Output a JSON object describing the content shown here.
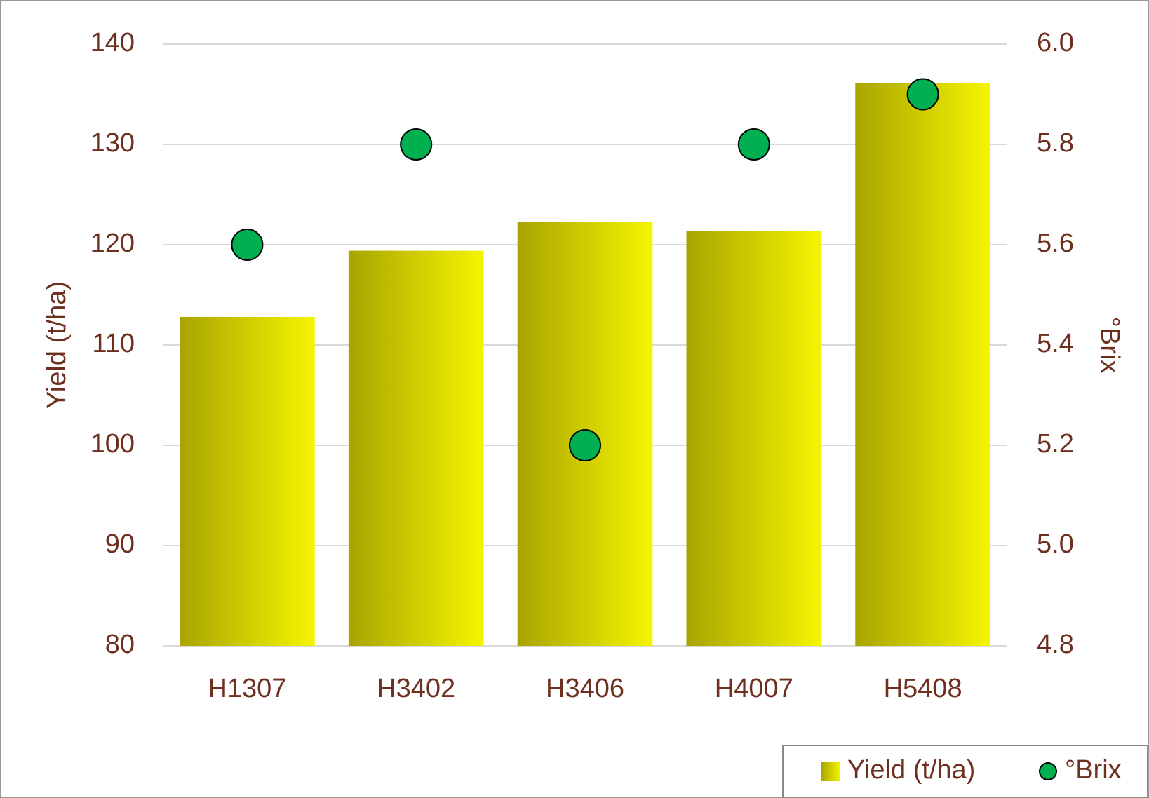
{
  "chart_data": {
    "type": "bar",
    "y_label": "Yield (t/ha)",
    "y2_label": "°Brix",
    "categories": [
      "H1307",
      "H3402",
      "H3406",
      "H4007",
      "H5408"
    ],
    "series": [
      {
        "name": "Yield (t/ha)",
        "type": "bar",
        "color": "#f5f500",
        "values": [
          112.8,
          119.4,
          122.3,
          121.4,
          136.1
        ]
      },
      {
        "name": "°Brix",
        "type": "scatter",
        "axis": "y2",
        "color": "#00b050",
        "values": [
          5.6,
          5.8,
          5.2,
          5.8,
          5.9
        ]
      }
    ],
    "ylim": [
      80,
      140
    ],
    "yticks": [
      80,
      90,
      100,
      110,
      120,
      130,
      140
    ],
    "y2lim": [
      4.8,
      6.0
    ],
    "y2ticks": [
      4.8,
      {
        "value": 5.0,
        "label": "5.0"
      },
      5.2,
      5.4,
      5.6,
      5.8,
      {
        "value": 6.0,
        "label": "6.0"
      }
    ],
    "grid": true,
    "legend": "bottom-right"
  }
}
